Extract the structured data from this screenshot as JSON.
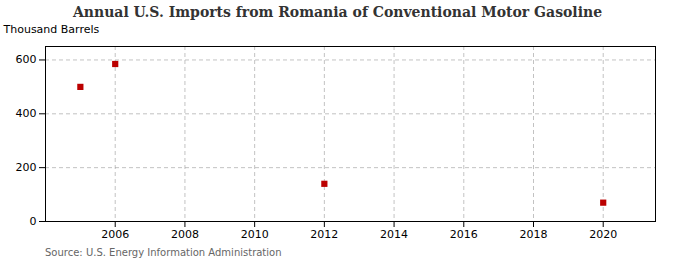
{
  "chart_data": {
    "type": "scatter",
    "title": "Annual U.S. Imports from Romania of Conventional Motor Gasoline",
    "ylabel": "Thousand Barrels",
    "annotation": "Source: U.S. Energy Information Administration",
    "x": [
      2005,
      2006,
      2012,
      2020
    ],
    "values": [
      500,
      585,
      140,
      70
    ],
    "color": "#bb0000",
    "marker": "square",
    "xlim": [
      2004.0,
      2021.5
    ],
    "xticks": [
      2006,
      2008,
      2010,
      2012,
      2014,
      2016,
      2018,
      2020
    ],
    "ylim": [
      0,
      650
    ],
    "yticks": [
      0,
      200,
      400,
      600
    ],
    "grid": true
  }
}
